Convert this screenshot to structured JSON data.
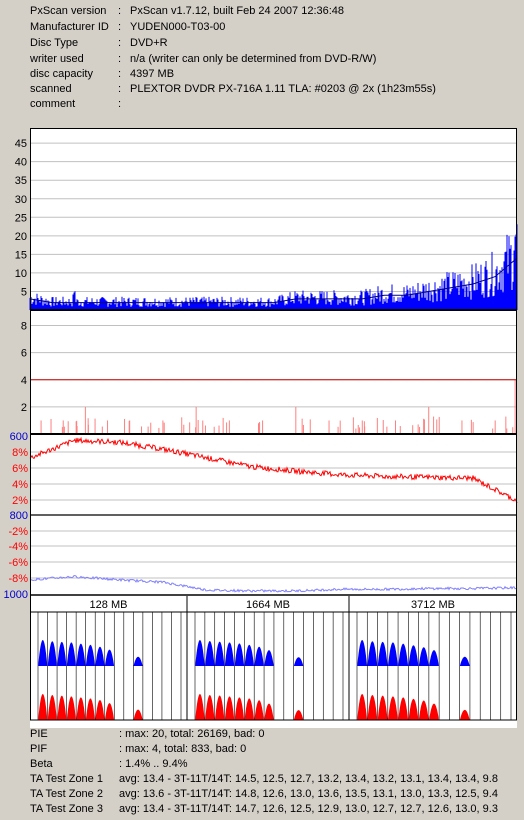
{
  "info": [
    {
      "label": "PxScan version",
      "value": "PxScan v1.7.12, built Feb 24 2007 12:36:48"
    },
    {
      "label": "Manufacturer ID",
      "value": "YUDEN000-T03-00"
    },
    {
      "label": "Disc Type",
      "value": "DVD+R"
    },
    {
      "label": "writer used",
      "value": "n/a (writer can only be determined from DVD-R/W)"
    },
    {
      "label": "disc capacity",
      "value": "4397 MB"
    },
    {
      "label": "scanned",
      "value": "PLEXTOR DVDR PX-716A 1.11 TLA: #0203 @ 2x (1h23m55s)"
    },
    {
      "label": "comment",
      "value": ""
    }
  ],
  "info_separator": ":",
  "footer": [
    {
      "label": "PIE",
      "value": ": max: 20, total: 26169, bad: 0"
    },
    {
      "label": "PIF",
      "value": ": max: 4, total: 833, bad: 0"
    },
    {
      "label": "Beta",
      "value": ": 1.4% .. 9.4%"
    },
    {
      "label": "TA Test Zone 1",
      "value": "avg: 13.4 - 3T-11T/14T: 14.5, 12.5, 12.7, 13.2, 13.4, 13.2, 13.1, 13.4, 13.4, 9.8"
    },
    {
      "label": "TA Test Zone 2",
      "value": "avg: 13.6 - 3T-11T/14T: 14.8, 12.6, 13.0, 13.6, 13.5, 13.1, 13.0, 13.3, 12.5, 9.4"
    },
    {
      "label": "TA Test Zone 3",
      "value": "avg: 13.4 - 3T-11T/14T: 14.7, 12.6, 12.5, 12.9, 13.0, 12.7, 12.7, 12.6, 13.0, 9.3"
    }
  ],
  "colors": {
    "pie": "#0000ff",
    "pif_threshold": "#cc0000",
    "pif": "#ff8080",
    "beta": "#ff0000",
    "jitter": "#8080ff",
    "axis_blue": "#0000cc"
  },
  "chart_data": [
    {
      "type": "area",
      "name": "PIE",
      "yticks": [
        "5",
        "10",
        "15",
        "20",
        "25",
        "30",
        "35",
        "40",
        "45"
      ],
      "ylim": [
        0,
        48
      ],
      "xlim": [
        0,
        4397
      ],
      "x": [
        0,
        200,
        400,
        600,
        800,
        1000,
        1200,
        1400,
        1600,
        1800,
        2000,
        2200,
        2400,
        2600,
        2800,
        3000,
        3200,
        3400,
        3600,
        3800,
        4000,
        4200,
        4397
      ],
      "values": [
        3,
        2,
        2,
        2,
        2,
        2,
        2,
        2,
        2,
        2,
        2,
        2,
        3,
        3,
        3,
        3,
        4,
        4,
        5,
        6,
        7,
        9,
        14
      ],
      "peaks": [
        [
          400,
          6
        ],
        [
          4380,
          20
        ]
      ]
    },
    {
      "type": "bar",
      "name": "PIF",
      "yticks": [
        "2",
        "4",
        "6",
        "8"
      ],
      "ylim": [
        0,
        9
      ],
      "threshold": 4,
      "xlim": [
        0,
        4397
      ],
      "x": [
        100,
        300,
        500,
        700,
        900,
        1200,
        1500,
        1800,
        2100,
        2400,
        2700,
        3000,
        3300,
        3600,
        3900,
        4200,
        4380
      ],
      "values": [
        1,
        1,
        2,
        1,
        1,
        1,
        2,
        1,
        1,
        2,
        1,
        1,
        1,
        2,
        1,
        1,
        4
      ]
    },
    {
      "type": "line",
      "name": "Beta / Jitter",
      "left_ticks": [
        "600",
        "800",
        "1000"
      ],
      "right_ticks": [
        "8%",
        "6%",
        "4%",
        "2%",
        "-2%",
        "-4%",
        "-6%",
        "-8%"
      ],
      "beta_range": [
        0,
        9
      ],
      "jitter_range": [
        0,
        -10
      ],
      "x": [
        0,
        400,
        800,
        1200,
        1600,
        2000,
        2400,
        2800,
        3200,
        3600,
        4000,
        4397
      ],
      "beta": [
        6.5,
        8.5,
        8.3,
        7.5,
        6.5,
        5.5,
        5.0,
        4.6,
        4.4,
        4.3,
        4.2,
        1.6
      ],
      "jitter": [
        -8.2,
        -7.8,
        -8.2,
        -8.5,
        -9.5,
        -9.6,
        -9.6,
        -9.4,
        -9.4,
        -9.3,
        -9.3,
        -9.2
      ]
    },
    {
      "type": "area",
      "name": "TA Test Zones",
      "zone_labels": [
        "128 MB",
        "1664 MB",
        "3712 MB"
      ],
      "zones": [
        {
          "blue": [
            1,
            0.95,
            0.92,
            0.9,
            0.85,
            0.8,
            0.72,
            0.6,
            0,
            0.3
          ],
          "red": [
            1,
            0.96,
            0.93,
            0.9,
            0.86,
            0.82,
            0.75,
            0.62,
            0,
            0.35
          ]
        },
        {
          "blue": [
            1,
            0.96,
            0.93,
            0.9,
            0.86,
            0.8,
            0.72,
            0.58,
            0,
            0.28
          ],
          "red": [
            1,
            0.96,
            0.94,
            0.9,
            0.86,
            0.82,
            0.74,
            0.6,
            0,
            0.33
          ]
        },
        {
          "blue": [
            1,
            0.95,
            0.92,
            0.9,
            0.85,
            0.78,
            0.7,
            0.58,
            0,
            0.3
          ],
          "red": [
            1,
            0.96,
            0.93,
            0.9,
            0.86,
            0.8,
            0.73,
            0.6,
            0,
            0.34
          ]
        }
      ]
    }
  ]
}
